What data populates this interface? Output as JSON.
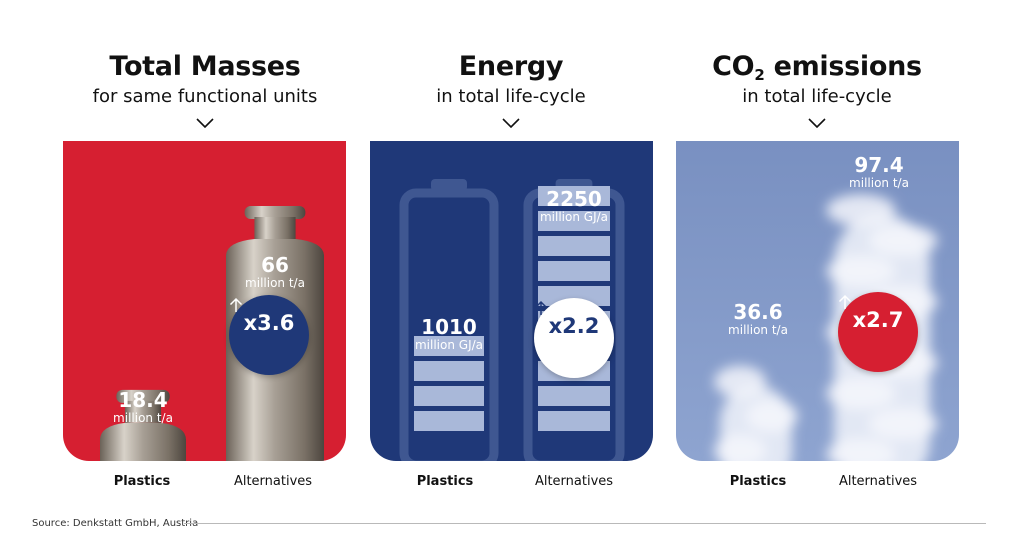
{
  "columns": [
    {
      "title": "Total Masses",
      "subtitle": "for same functional units"
    },
    {
      "title": "Energy",
      "subtitle": "in total life-cycle"
    },
    {
      "title_main": "CO",
      "title_sub": "2",
      "title_rest": " emissions",
      "subtitle": "in total life-cycle"
    }
  ],
  "colors": {
    "red": "#d61f31",
    "navy": "#1f3878",
    "blue": "#7f95c6"
  },
  "chart_data": [
    {
      "type": "bar",
      "title": "Total Masses",
      "subtitle": "for same functional units",
      "categories": [
        "Plastics",
        "Alternatives"
      ],
      "values": [
        18.4,
        66
      ],
      "value_labels": [
        "18.4",
        "66"
      ],
      "unit": "million t/a",
      "multiplier": "x3.6"
    },
    {
      "type": "bar",
      "title": "Energy",
      "subtitle": "in total life-cycle",
      "categories": [
        "Plastics",
        "Alternatives"
      ],
      "values": [
        1010,
        2250
      ],
      "value_labels": [
        "1010",
        "2250"
      ],
      "unit": "million GJ/a",
      "multiplier": "x2.2"
    },
    {
      "type": "bar",
      "title": "CO2 emissions",
      "subtitle": "in total life-cycle",
      "categories": [
        "Plastics",
        "Alternatives"
      ],
      "values": [
        36.6,
        97.4
      ],
      "value_labels": [
        "36.6",
        "97.4"
      ],
      "unit": "million t/a",
      "multiplier": "x2.7"
    }
  ],
  "source": "Source: Denkstatt GmbH, Austria"
}
